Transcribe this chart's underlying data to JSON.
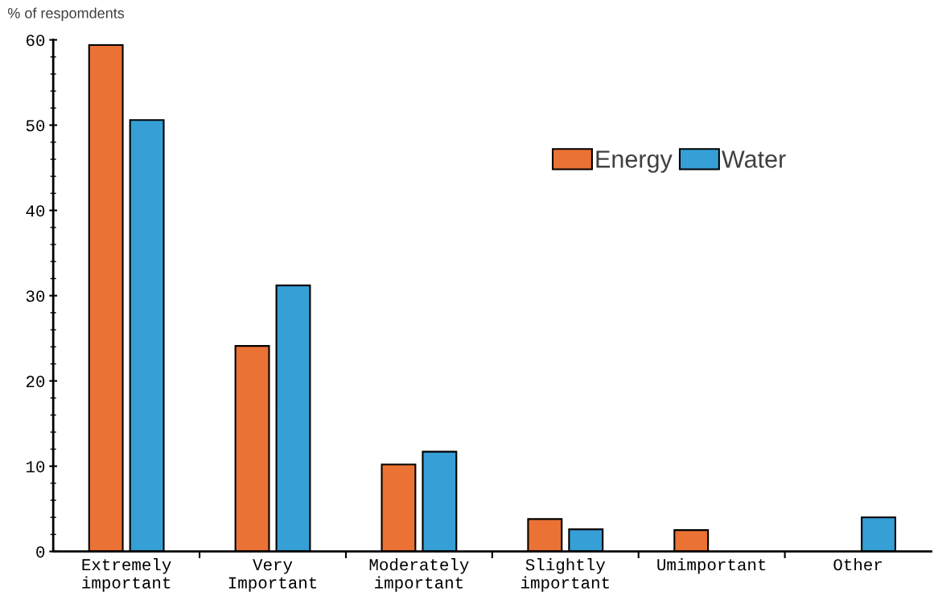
{
  "chart_data": {
    "type": "bar",
    "ylabel": "% of respomdents",
    "categories": [
      "Extremely\nimportant",
      "Very\nImportant",
      "Moderately\nimportant",
      "Slightly\nimportant",
      "Umimportant",
      "Other"
    ],
    "series": [
      {
        "name": "Energy",
        "color": "#ea7234",
        "values": [
          59.4,
          24.1,
          10.2,
          3.8,
          2.5,
          null
        ]
      },
      {
        "name": "Water",
        "color": "#359fd6",
        "values": [
          50.6,
          31.2,
          11.7,
          2.6,
          null,
          4.0
        ]
      }
    ],
    "ylim": [
      0,
      60
    ],
    "yticks": [
      0,
      {
        "value": 2,
        "label": null
      },
      {
        "value": 4,
        "label": null
      },
      {
        "value": 6,
        "label": null
      },
      {
        "value": 8,
        "label": null
      },
      10,
      {
        "value": 12,
        "label": null
      },
      {
        "value": 14,
        "label": null
      },
      {
        "value": 16,
        "label": null
      },
      {
        "value": 18,
        "label": null
      },
      20,
      {
        "value": 22,
        "label": null
      },
      {
        "value": 24,
        "label": null
      },
      {
        "value": 26,
        "label": null
      },
      {
        "value": 28,
        "label": null
      },
      30,
      {
        "value": 32,
        "label": null
      },
      {
        "value": 34,
        "label": null
      },
      {
        "value": 36,
        "label": null
      },
      {
        "value": 38,
        "label": null
      },
      40,
      {
        "value": 42,
        "label": null
      },
      {
        "value": 44,
        "label": null
      },
      {
        "value": 46,
        "label": null
      },
      {
        "value": 48,
        "label": null
      },
      50,
      {
        "value": 52,
        "label": null
      },
      {
        "value": 54,
        "label": null
      },
      {
        "value": 56,
        "label": null
      },
      {
        "value": 58,
        "label": null
      },
      60
    ],
    "grid": false,
    "legend": "top right"
  }
}
